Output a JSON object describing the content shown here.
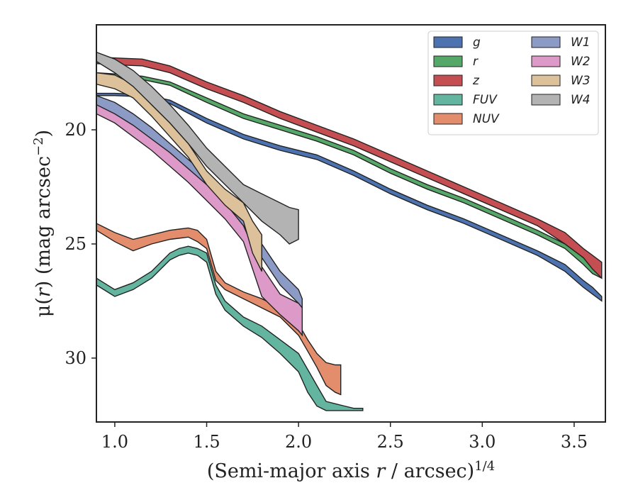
{
  "chart_data": {
    "type": "area",
    "xlabel": "(Semi-major axis r / arcsec)^1/4",
    "xlabel_parts": {
      "pre": "(Semi-major axis ",
      "var": "r",
      "mid": " / arcsec)",
      "sup": "1/4"
    },
    "ylabel": "μ(r) (mag arcsec^-2)",
    "ylabel_parts": {
      "pre": "μ(",
      "var": "r",
      "mid": ") (mag arcsec",
      "sup": "−2",
      "post": ")"
    },
    "xlim": [
      0.9,
      3.67
    ],
    "ylim": [
      32.8,
      15.4
    ],
    "y_inverted": true,
    "xticks": [
      1.0,
      1.5,
      2.0,
      2.5,
      3.0,
      3.5
    ],
    "xtick_labels": [
      "1.0",
      "1.5",
      "2.0",
      "2.5",
      "3.0",
      "3.5"
    ],
    "yticks": [
      20,
      25,
      30
    ],
    "ytick_labels": [
      "20",
      "25",
      "30"
    ],
    "grid": false,
    "legend": {
      "placement": "top-right",
      "columns": 2
    },
    "series": [
      {
        "name": "g",
        "color": "#4c72b0",
        "x": [
          0.9,
          1.0,
          1.15,
          1.3,
          1.5,
          1.7,
          1.9,
          2.1,
          2.3,
          2.5,
          2.7,
          2.9,
          3.1,
          3.3,
          3.45,
          3.55,
          3.6,
          3.65
        ],
        "lower": [
          18.4,
          18.4,
          18.45,
          18.7,
          19.5,
          20.2,
          20.7,
          21.1,
          21.8,
          22.6,
          23.3,
          23.9,
          24.6,
          25.3,
          25.9,
          26.6,
          26.9,
          27.3
        ],
        "upper": [
          18.5,
          18.5,
          18.55,
          18.85,
          19.7,
          20.4,
          20.9,
          21.3,
          22.0,
          22.8,
          23.5,
          24.1,
          24.8,
          25.5,
          26.2,
          26.9,
          27.2,
          27.5
        ]
      },
      {
        "name": "r",
        "color": "#55a868",
        "x": [
          0.9,
          1.0,
          1.15,
          1.3,
          1.5,
          1.7,
          1.9,
          2.1,
          2.3,
          2.5,
          2.7,
          2.9,
          3.1,
          3.3,
          3.45,
          3.55,
          3.6,
          3.65
        ],
        "lower": [
          17.5,
          17.55,
          17.65,
          17.9,
          18.6,
          19.3,
          19.8,
          20.3,
          20.9,
          21.7,
          22.4,
          23.0,
          23.7,
          24.4,
          25.0,
          25.6,
          26.0,
          26.3
        ],
        "upper": [
          17.7,
          17.75,
          17.8,
          18.05,
          18.8,
          19.5,
          20.0,
          20.5,
          21.1,
          21.9,
          22.6,
          23.2,
          23.9,
          24.6,
          25.2,
          25.9,
          26.3,
          26.5
        ]
      },
      {
        "name": "z",
        "color": "#c44e52",
        "x": [
          0.9,
          1.0,
          1.15,
          1.3,
          1.5,
          1.7,
          1.9,
          2.1,
          2.3,
          2.5,
          2.7,
          2.9,
          3.1,
          3.3,
          3.45,
          3.55,
          3.6,
          3.65
        ],
        "lower": [
          16.8,
          16.85,
          16.9,
          17.2,
          17.9,
          18.5,
          19.2,
          19.8,
          20.4,
          21.1,
          21.8,
          22.5,
          23.2,
          23.9,
          24.5,
          25.2,
          25.5,
          25.8
        ],
        "upper": [
          17.1,
          17.15,
          17.2,
          17.5,
          18.2,
          18.8,
          19.5,
          20.1,
          20.7,
          21.4,
          22.1,
          22.8,
          23.5,
          24.2,
          25.0,
          25.6,
          26.1,
          26.5
        ]
      },
      {
        "name": "FUV",
        "color": "#64b5a0",
        "x": [
          0.9,
          1.0,
          1.1,
          1.2,
          1.3,
          1.35,
          1.4,
          1.45,
          1.5,
          1.55,
          1.6,
          1.7,
          1.8,
          1.9,
          2.0,
          2.05,
          2.1,
          2.15,
          2.2,
          2.25,
          2.3,
          2.35
        ],
        "lower": [
          26.5,
          27.0,
          26.7,
          26.2,
          25.4,
          25.2,
          25.1,
          25.2,
          25.4,
          26.8,
          27.5,
          28.2,
          28.6,
          29.2,
          29.8,
          30.5,
          31.2,
          31.9,
          32.0,
          32.1,
          32.2,
          32.2
        ],
        "upper": [
          26.8,
          27.3,
          27.0,
          26.5,
          25.7,
          25.5,
          25.4,
          25.5,
          25.8,
          27.2,
          27.9,
          28.6,
          29.1,
          29.8,
          30.6,
          31.5,
          32.1,
          32.3,
          32.3,
          32.3,
          32.3,
          32.3
        ]
      },
      {
        "name": "NUV",
        "color": "#e48d6d",
        "x": [
          0.9,
          1.0,
          1.1,
          1.2,
          1.3,
          1.4,
          1.45,
          1.5,
          1.55,
          1.6,
          1.7,
          1.8,
          1.9,
          2.0,
          2.05,
          2.1,
          2.15,
          2.2,
          2.23
        ],
        "lower": [
          24.1,
          24.5,
          24.8,
          24.6,
          24.4,
          24.3,
          24.4,
          24.8,
          26.2,
          26.7,
          27.1,
          27.4,
          27.8,
          28.5,
          29.2,
          29.8,
          30.2,
          30.3,
          30.3
        ],
        "upper": [
          24.4,
          24.9,
          25.3,
          25.0,
          24.8,
          24.7,
          24.9,
          25.2,
          26.6,
          27.0,
          27.4,
          27.8,
          28.2,
          29.0,
          29.7,
          30.4,
          31.2,
          31.5,
          31.6
        ]
      },
      {
        "name": "W1",
        "color": "#8c9bc6",
        "x": [
          0.9,
          1.0,
          1.1,
          1.2,
          1.3,
          1.4,
          1.5,
          1.6,
          1.7,
          1.8,
          1.9,
          2.0,
          2.02
        ],
        "lower": [
          18.5,
          18.8,
          19.3,
          19.9,
          20.6,
          21.3,
          22.0,
          22.7,
          23.6,
          25.0,
          26.2,
          27.0,
          27.4
        ],
        "upper": [
          19.1,
          19.4,
          19.9,
          20.5,
          21.2,
          21.9,
          22.6,
          23.3,
          24.2,
          25.6,
          26.8,
          27.6,
          28.0
        ]
      },
      {
        "name": "W2",
        "color": "#dd9ac8",
        "x": [
          0.9,
          1.0,
          1.1,
          1.2,
          1.3,
          1.4,
          1.5,
          1.6,
          1.7,
          1.8,
          1.9,
          2.0,
          2.02
        ],
        "lower": [
          18.9,
          19.3,
          19.8,
          20.4,
          21.0,
          21.7,
          22.4,
          23.2,
          24.2,
          26.0,
          27.2,
          27.6,
          27.8
        ],
        "upper": [
          19.3,
          19.7,
          20.3,
          20.9,
          21.6,
          22.3,
          23.1,
          23.9,
          24.9,
          27.3,
          28.1,
          28.8,
          29.0
        ]
      },
      {
        "name": "W3",
        "color": "#dcc19b",
        "x": [
          0.9,
          1.0,
          1.1,
          1.2,
          1.3,
          1.4,
          1.5,
          1.6,
          1.7,
          1.75,
          1.8
        ],
        "lower": [
          17.5,
          17.6,
          18.0,
          18.9,
          19.7,
          20.6,
          21.8,
          22.6,
          23.2,
          24.0,
          24.6
        ],
        "upper": [
          18.0,
          18.2,
          18.6,
          19.4,
          20.3,
          21.2,
          22.4,
          23.3,
          24.0,
          25.4,
          26.2
        ]
      },
      {
        "name": "W4",
        "color": "#b3b3b3",
        "x": [
          0.9,
          1.0,
          1.1,
          1.2,
          1.3,
          1.4,
          1.5,
          1.6,
          1.7,
          1.8,
          1.9,
          1.95,
          2.0
        ],
        "lower": [
          16.6,
          16.9,
          17.4,
          18.1,
          18.9,
          19.8,
          20.8,
          21.6,
          22.4,
          22.8,
          23.2,
          23.4,
          23.5
        ],
        "upper": [
          17.0,
          17.5,
          18.1,
          18.9,
          19.7,
          20.6,
          21.6,
          22.4,
          23.2,
          24.0,
          24.6,
          25.0,
          24.8
        ]
      }
    ]
  }
}
